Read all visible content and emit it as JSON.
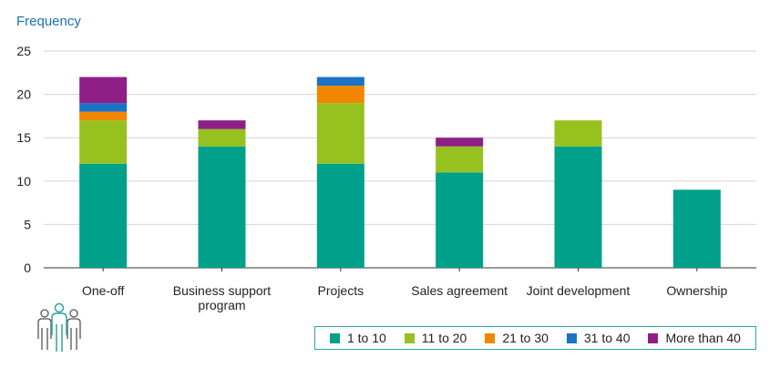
{
  "chart_data": {
    "type": "bar",
    "stacked": true,
    "ylabel": "Frequency",
    "xlabel": "",
    "ylim": [
      0,
      25
    ],
    "yticks": [
      0,
      5,
      10,
      15,
      20,
      25
    ],
    "grid": true,
    "legend_position": "bottom-right",
    "categories": [
      "One-off",
      "Business support program",
      "Projects",
      "Sales agreement",
      "Joint development",
      "Ownership"
    ],
    "category_lines": [
      [
        "One-off"
      ],
      [
        "Business support",
        "program"
      ],
      [
        "Projects"
      ],
      [
        "Sales agreement"
      ],
      [
        "Joint development"
      ],
      [
        "Ownership"
      ]
    ],
    "series": [
      {
        "name": "1 to 10",
        "color": "#00a08a",
        "values": [
          12,
          14,
          12,
          11,
          14,
          9
        ]
      },
      {
        "name": "11 to 20",
        "color": "#97c11f",
        "values": [
          5,
          2,
          7,
          3,
          3,
          0
        ]
      },
      {
        "name": "21 to 30",
        "color": "#f18700",
        "values": [
          1,
          0,
          2,
          0,
          0,
          0
        ]
      },
      {
        "name": "31 to 40",
        "color": "#1a73c4",
        "values": [
          1,
          0,
          1,
          0,
          0,
          0
        ]
      },
      {
        "name": "More than 40",
        "color": "#8e1f87",
        "values": [
          3,
          1,
          0,
          1,
          0,
          0
        ]
      }
    ]
  },
  "icon": {
    "name": "people-group-icon",
    "color": "#2aa7a0"
  }
}
